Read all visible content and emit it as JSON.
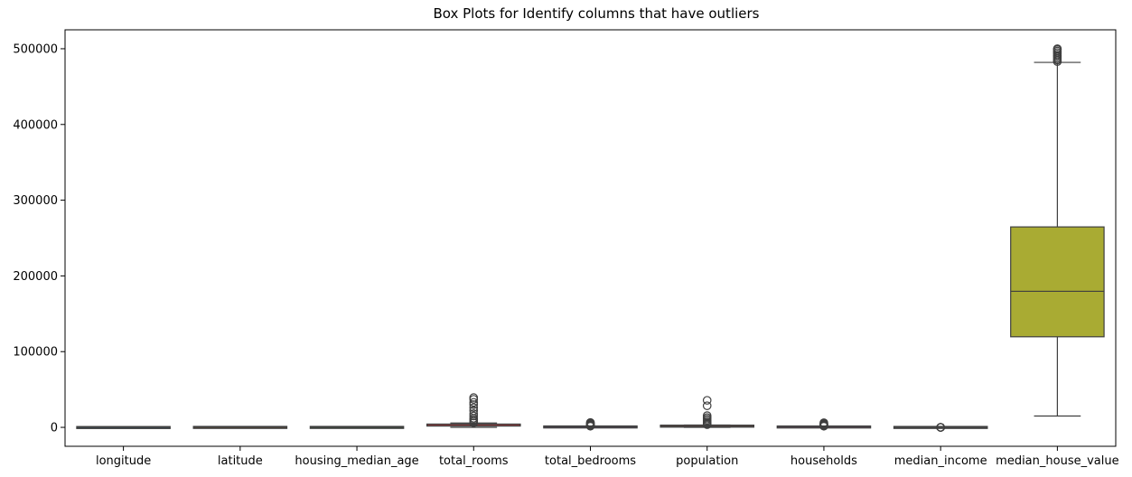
{
  "chart_data": {
    "type": "box",
    "title": "Box Plots for Identify columns that have outliers",
    "xlabel": "",
    "ylabel": "",
    "ylim": [
      -25000,
      525000
    ],
    "yticks": [
      0,
      100000,
      200000,
      300000,
      400000,
      500000
    ],
    "ytick_labels": [
      "0",
      "100000",
      "200000",
      "300000",
      "400000",
      "500000"
    ],
    "categories": [
      "longitude",
      "latitude",
      "housing_median_age",
      "total_rooms",
      "total_bedrooms",
      "population",
      "households",
      "median_income",
      "median_house_value"
    ],
    "box_colors": [
      "#3274a1",
      "#e1812c",
      "#3a923a",
      "#c03d3e",
      "#9372b2",
      "#845b53",
      "#d684bd",
      "#7f7f7f",
      "#a9ab33"
    ],
    "edge_color": "#3f3f3f",
    "boxes": [
      {
        "min": -124.3,
        "q1": -121.8,
        "median": -118.5,
        "q3": -118.0,
        "max": -114.3,
        "outliers": []
      },
      {
        "min": 32.5,
        "q1": 33.9,
        "median": 34.3,
        "q3": 37.7,
        "max": 42.0,
        "outliers": []
      },
      {
        "min": 1,
        "q1": 18,
        "median": 29,
        "q3": 37,
        "max": 52,
        "outliers": []
      },
      {
        "min": 2,
        "q1": 1448,
        "median": 2127,
        "q3": 3148,
        "max": 5698,
        "outliers": [
          6000,
          8000,
          10000,
          12000,
          15000,
          18000,
          22000,
          26000,
          30000,
          33000,
          37000,
          39300
        ]
      },
      {
        "min": 1,
        "q1": 296,
        "median": 435,
        "q3": 647,
        "max": 1173,
        "outliers": [
          1500,
          2000,
          2500,
          3000,
          3500,
          4000,
          5000,
          6000,
          6400
        ]
      },
      {
        "min": 3,
        "q1": 787,
        "median": 1166,
        "q3": 1725,
        "max": 3132,
        "outliers": [
          3500,
          4500,
          5500,
          7000,
          9000,
          11000,
          13000,
          15500,
          28500,
          35700
        ]
      },
      {
        "min": 1,
        "q1": 280,
        "median": 409,
        "q3": 605,
        "max": 1092,
        "outliers": [
          1500,
          2000,
          2500,
          3000,
          3500,
          4200,
          5000,
          6100
        ]
      },
      {
        "min": 0.5,
        "q1": 2.56,
        "median": 3.53,
        "q3": 4.74,
        "max": 8.0,
        "outliers": [
          9,
          10,
          11,
          12,
          13,
          14,
          15
        ]
      },
      {
        "min": 14999,
        "q1": 119600,
        "median": 179700,
        "q3": 264725,
        "max": 482000,
        "outliers": [
          483000,
          485000,
          487000,
          489000,
          491000,
          493000,
          495000,
          497000,
          499000,
          500001
        ]
      }
    ]
  }
}
